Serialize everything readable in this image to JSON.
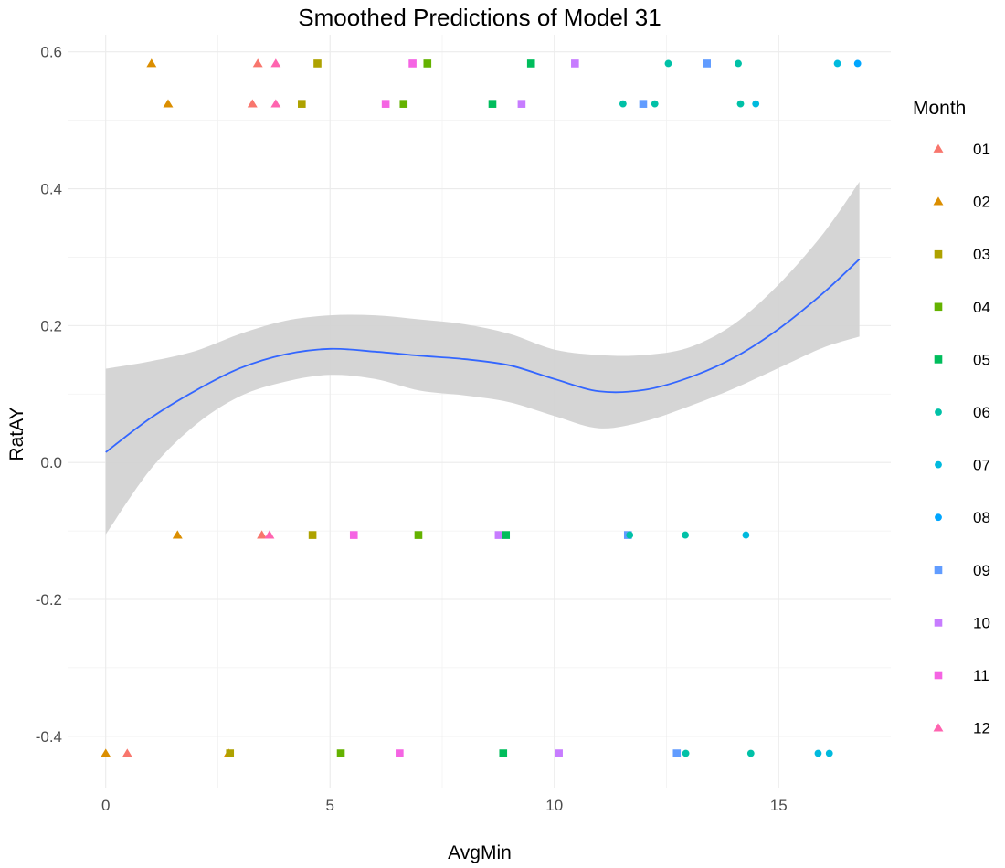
{
  "chart_data": {
    "type": "scatter",
    "title": "Smoothed Predictions of Model 31",
    "xlabel": "AvgMin",
    "ylabel": "RatAY",
    "xlim": [
      -0.85,
      17.5
    ],
    "ylim": [
      -0.475,
      0.625
    ],
    "xticks": [
      0,
      5,
      10,
      15
    ],
    "xtick_labels": [
      "0",
      "5",
      "10",
      "15"
    ],
    "yticks": [
      -0.4,
      -0.2,
      0.0,
      0.2,
      0.4,
      0.6
    ],
    "ytick_labels": [
      "-0.4",
      "-0.2",
      "0.0",
      "0.2",
      "0.4",
      "0.6"
    ],
    "grid": true,
    "legend": {
      "title": "Month",
      "placement": "right",
      "entries": [
        {
          "label": "01",
          "color": "#F8766D",
          "shape": "triangle"
        },
        {
          "label": "02",
          "color": "#DB8E00",
          "shape": "triangle"
        },
        {
          "label": "03",
          "color": "#AEA200",
          "shape": "square"
        },
        {
          "label": "04",
          "color": "#64B200",
          "shape": "square"
        },
        {
          "label": "05",
          "color": "#00BD5C",
          "shape": "square"
        },
        {
          "label": "06",
          "color": "#00C1A7",
          "shape": "circle"
        },
        {
          "label": "07",
          "color": "#00BADE",
          "shape": "circle"
        },
        {
          "label": "08",
          "color": "#00A6FF",
          "shape": "circle"
        },
        {
          "label": "09",
          "color": "#619CFF",
          "shape": "square"
        },
        {
          "label": "10",
          "color": "#C77CFF",
          "shape": "square"
        },
        {
          "label": "11",
          "color": "#F564E3",
          "shape": "square"
        },
        {
          "label": "12",
          "color": "#FF64B0",
          "shape": "triangle"
        }
      ]
    },
    "smooth": {
      "color": "#3366FF",
      "ribbon_color": "#d3d3d3",
      "x": [
        0.0,
        1.0,
        2.0,
        3.0,
        4.0,
        5.0,
        6.0,
        7.0,
        8.0,
        9.0,
        10.0,
        11.0,
        12.0,
        13.0,
        14.0,
        15.0,
        16.0,
        16.8
      ],
      "y": [
        0.015,
        0.065,
        0.105,
        0.138,
        0.158,
        0.166,
        0.162,
        0.156,
        0.151,
        0.142,
        0.122,
        0.104,
        0.106,
        0.124,
        0.153,
        0.195,
        0.248,
        0.297
      ],
      "lower": [
        -0.105,
        -0.01,
        0.055,
        0.097,
        0.118,
        0.128,
        0.122,
        0.105,
        0.098,
        0.088,
        0.068,
        0.05,
        0.06,
        0.082,
        0.108,
        0.138,
        0.168,
        0.184
      ],
      "upper": [
        0.137,
        0.148,
        0.163,
        0.188,
        0.207,
        0.215,
        0.215,
        0.209,
        0.202,
        0.188,
        0.165,
        0.157,
        0.157,
        0.168,
        0.202,
        0.26,
        0.335,
        0.41
      ]
    },
    "points": [
      {
        "x": 0.0,
        "y": -0.425,
        "month": "02"
      },
      {
        "x": 0.48,
        "y": -0.425,
        "month": "01"
      },
      {
        "x": 2.74,
        "y": -0.425,
        "month": "02"
      },
      {
        "x": 2.77,
        "y": -0.425,
        "month": "03"
      },
      {
        "x": 5.24,
        "y": -0.425,
        "month": "04"
      },
      {
        "x": 6.55,
        "y": -0.425,
        "month": "11"
      },
      {
        "x": 8.86,
        "y": -0.425,
        "month": "05"
      },
      {
        "x": 10.1,
        "y": -0.425,
        "month": "10"
      },
      {
        "x": 12.73,
        "y": -0.425,
        "month": "09"
      },
      {
        "x": 12.93,
        "y": -0.425,
        "month": "06"
      },
      {
        "x": 14.38,
        "y": -0.425,
        "month": "06"
      },
      {
        "x": 15.88,
        "y": -0.425,
        "month": "07"
      },
      {
        "x": 16.13,
        "y": -0.425,
        "month": "07"
      },
      {
        "x": 1.6,
        "y": -0.106,
        "month": "02"
      },
      {
        "x": 3.48,
        "y": -0.106,
        "month": "01"
      },
      {
        "x": 3.65,
        "y": -0.106,
        "month": "12"
      },
      {
        "x": 4.61,
        "y": -0.106,
        "month": "03"
      },
      {
        "x": 5.53,
        "y": -0.106,
        "month": "11"
      },
      {
        "x": 6.97,
        "y": -0.106,
        "month": "04"
      },
      {
        "x": 8.76,
        "y": -0.106,
        "month": "10"
      },
      {
        "x": 8.92,
        "y": -0.106,
        "month": "05"
      },
      {
        "x": 11.64,
        "y": -0.106,
        "month": "09"
      },
      {
        "x": 11.68,
        "y": -0.106,
        "month": "06"
      },
      {
        "x": 12.92,
        "y": -0.106,
        "month": "06"
      },
      {
        "x": 14.27,
        "y": -0.106,
        "month": "07"
      },
      {
        "x": 1.39,
        "y": 0.524,
        "month": "02"
      },
      {
        "x": 3.27,
        "y": 0.524,
        "month": "01"
      },
      {
        "x": 3.79,
        "y": 0.524,
        "month": "12"
      },
      {
        "x": 4.37,
        "y": 0.524,
        "month": "03"
      },
      {
        "x": 6.24,
        "y": 0.524,
        "month": "11"
      },
      {
        "x": 6.64,
        "y": 0.524,
        "month": "04"
      },
      {
        "x": 8.62,
        "y": 0.524,
        "month": "05"
      },
      {
        "x": 9.27,
        "y": 0.524,
        "month": "10"
      },
      {
        "x": 11.53,
        "y": 0.524,
        "month": "06"
      },
      {
        "x": 11.98,
        "y": 0.524,
        "month": "09"
      },
      {
        "x": 12.24,
        "y": 0.524,
        "month": "06"
      },
      {
        "x": 14.15,
        "y": 0.524,
        "month": "06"
      },
      {
        "x": 14.49,
        "y": 0.524,
        "month": "07"
      },
      {
        "x": 1.02,
        "y": 0.583,
        "month": "02"
      },
      {
        "x": 3.39,
        "y": 0.583,
        "month": "01"
      },
      {
        "x": 3.79,
        "y": 0.583,
        "month": "12"
      },
      {
        "x": 4.72,
        "y": 0.583,
        "month": "03"
      },
      {
        "x": 6.84,
        "y": 0.583,
        "month": "11"
      },
      {
        "x": 7.17,
        "y": 0.583,
        "month": "04"
      },
      {
        "x": 9.48,
        "y": 0.583,
        "month": "05"
      },
      {
        "x": 10.46,
        "y": 0.583,
        "month": "10"
      },
      {
        "x": 12.54,
        "y": 0.583,
        "month": "06"
      },
      {
        "x": 13.4,
        "y": 0.583,
        "month": "09"
      },
      {
        "x": 14.1,
        "y": 0.583,
        "month": "06"
      },
      {
        "x": 16.31,
        "y": 0.583,
        "month": "07"
      },
      {
        "x": 16.76,
        "y": 0.583,
        "month": "08"
      }
    ]
  }
}
